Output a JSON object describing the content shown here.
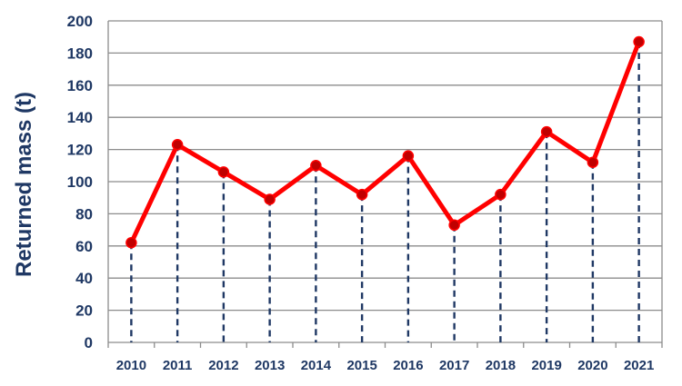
{
  "chart_data": {
    "type": "line",
    "title": "",
    "xlabel": "",
    "ylabel": "Returned mass (t)",
    "categories": [
      "2010",
      "2011",
      "2012",
      "2013",
      "2014",
      "2015",
      "2016",
      "2017",
      "2018",
      "2019",
      "2020",
      "2021"
    ],
    "series": [
      {
        "values": [
          62,
          123,
          106,
          89,
          110,
          92,
          116,
          73,
          92,
          131,
          112,
          187
        ]
      }
    ],
    "ylim": [
      0,
      200
    ],
    "yticks": [
      "0",
      "20",
      "40",
      "60",
      "80",
      "100",
      "120",
      "140",
      "160",
      "180",
      "200"
    ],
    "grid": "horizontal",
    "drop_lines": true,
    "line_color": "#ff0000",
    "marker_color": "#c00000",
    "drop_line_color": "#1f3864",
    "text_color": "#1f3864"
  }
}
